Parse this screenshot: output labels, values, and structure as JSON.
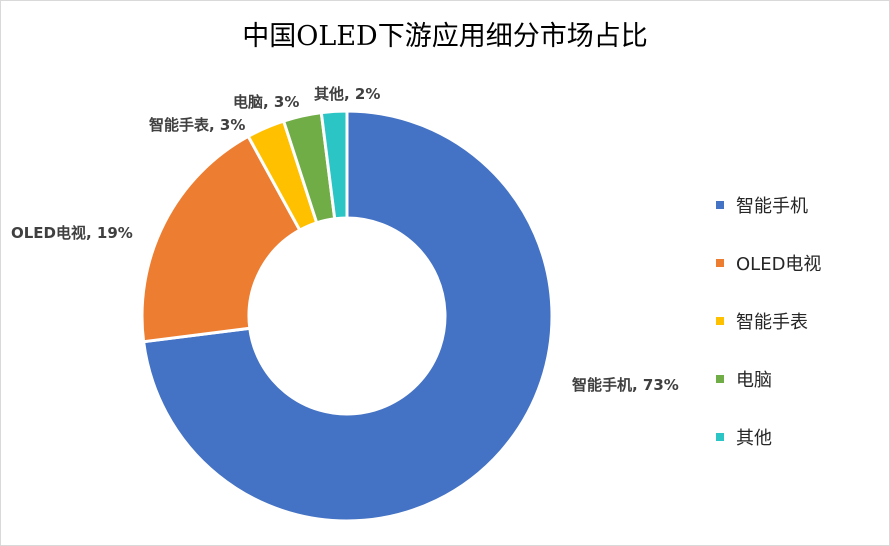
{
  "chart_data": {
    "type": "pie",
    "title": "中国OLED下游应用细分市场占比",
    "donut": true,
    "legend_position": "right",
    "series": [
      {
        "name": "智能手机",
        "value": 73,
        "label": "智能手机, 73%",
        "color": "#4472C4"
      },
      {
        "name": "OLED电视",
        "value": 19,
        "label": "OLED电视, 19%",
        "color": "#ED7D31"
      },
      {
        "name": "智能手表",
        "value": 3,
        "label": "智能手表, 3%",
        "color": "#FFC000"
      },
      {
        "name": "电脑",
        "value": 3,
        "label": "电脑, 3%",
        "color": "#70AD47"
      },
      {
        "name": "其他",
        "value": 2,
        "label": "其他, 2%",
        "color": "#2CC5C5"
      }
    ]
  }
}
